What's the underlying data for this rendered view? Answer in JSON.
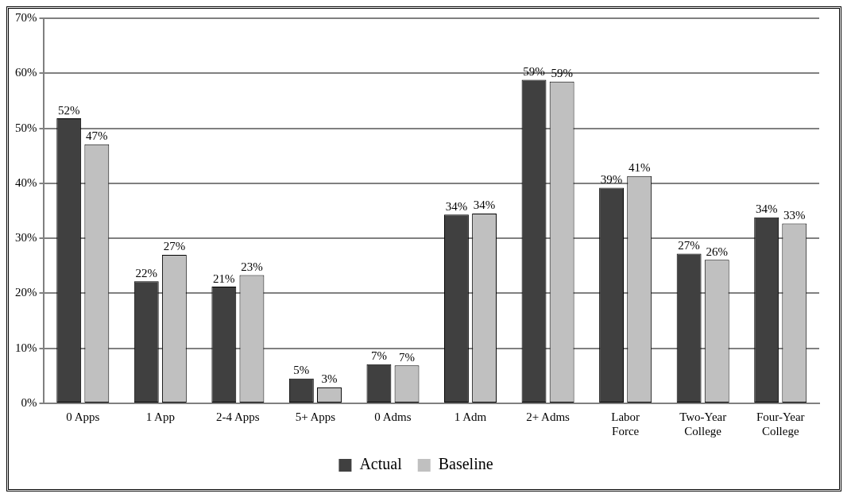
{
  "chart_data": {
    "type": "bar",
    "categories": [
      "0 Apps",
      "1 App",
      "2-4 Apps",
      "5+ Apps",
      "0 Adms",
      "1 Adm",
      "2+ Adms",
      "Labor Force",
      "Two-Year College",
      "Four-Year College"
    ],
    "series": [
      {
        "name": "Actual",
        "color": "#404040",
        "values": [
          51.8,
          22.2,
          21.2,
          4.5,
          7.1,
          34.3,
          58.8,
          39.2,
          27.2,
          33.8
        ],
        "value_labels": [
          "52%",
          "22%",
          "21%",
          "5%",
          "7%",
          "34%",
          "59%",
          "39%",
          "27%",
          "34%"
        ]
      },
      {
        "name": "Baseline",
        "color": "#c0c0c0",
        "values": [
          47.1,
          27.0,
          23.3,
          2.9,
          6.9,
          34.5,
          58.5,
          41.3,
          26.1,
          32.7
        ],
        "value_labels": [
          "47%",
          "27%",
          "23%",
          "3%",
          "7%",
          "34%",
          "59%",
          "41%",
          "26%",
          "33%"
        ]
      }
    ],
    "ylim": [
      0,
      70
    ],
    "yticks": [
      {
        "value": 0,
        "label": "0%"
      },
      {
        "value": 10,
        "label": "10%"
      },
      {
        "value": 20,
        "label": "20%"
      },
      {
        "value": 30,
        "label": "30%"
      },
      {
        "value": 40,
        "label": "40%"
      },
      {
        "value": 50,
        "label": "50%"
      },
      {
        "value": 60,
        "label": "60%"
      },
      {
        "value": 70,
        "label": "70%"
      }
    ],
    "grid": "y",
    "legend": "bottom"
  }
}
